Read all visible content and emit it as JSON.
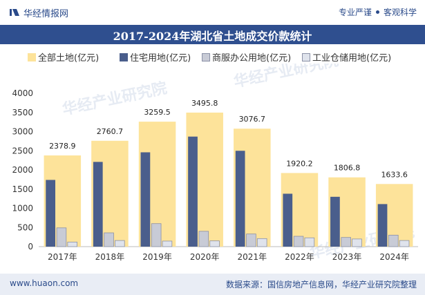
{
  "header": {
    "brand": "华经情报网",
    "slogan_left": "专业严谨",
    "slogan_right": "客观科学"
  },
  "footer": {
    "site": "www.huaon.com",
    "source": "数据来源：国信房地产信息网，华经产业研究院整理"
  },
  "watermarks": [
    "华经产业研究院",
    "www.huaon.com"
  ],
  "colors": {
    "total": "#fde39a",
    "residential": "#4a5e8c",
    "commercial": "#c8cbd6",
    "industrial": "#dfe3ec",
    "title_bg": "#2f4f8f"
  },
  "chart_data": {
    "type": "bar",
    "title": "2017-2024年湖北省土地成交价款统计",
    "categories": [
      "2017年",
      "2018年",
      "2019年",
      "2020年",
      "2021年",
      "2022年",
      "2023年",
      "2024年"
    ],
    "series": [
      {
        "name": "全部土地(亿元)",
        "values": [
          2378.9,
          2760.7,
          3259.5,
          3495.8,
          3076.7,
          1920.2,
          1806.8,
          1633.6
        ]
      },
      {
        "name": "住宅用地(亿元)",
        "values": [
          1740,
          2210,
          2460,
          2870,
          2500,
          1380,
          1300,
          1110
        ]
      },
      {
        "name": "商服办公用地(亿元)",
        "values": [
          490,
          360,
          600,
          400,
          330,
          270,
          240,
          300
        ]
      },
      {
        "name": "工业仓储用地(亿元)",
        "values": [
          120,
          160,
          145,
          150,
          210,
          230,
          200,
          160
        ]
      }
    ],
    "data_labels": [
      "2378.9",
      "2760.7",
      "3259.5",
      "3495.8",
      "3076.7",
      "1920.2",
      "1806.8",
      "1633.6"
    ],
    "yticks": [
      "0",
      "500",
      "1000",
      "1500",
      "2000",
      "2500",
      "3000",
      "3500",
      "4000"
    ],
    "ylim": [
      0,
      4000
    ],
    "xlabel": "",
    "ylabel": "",
    "legend_position": "top"
  }
}
